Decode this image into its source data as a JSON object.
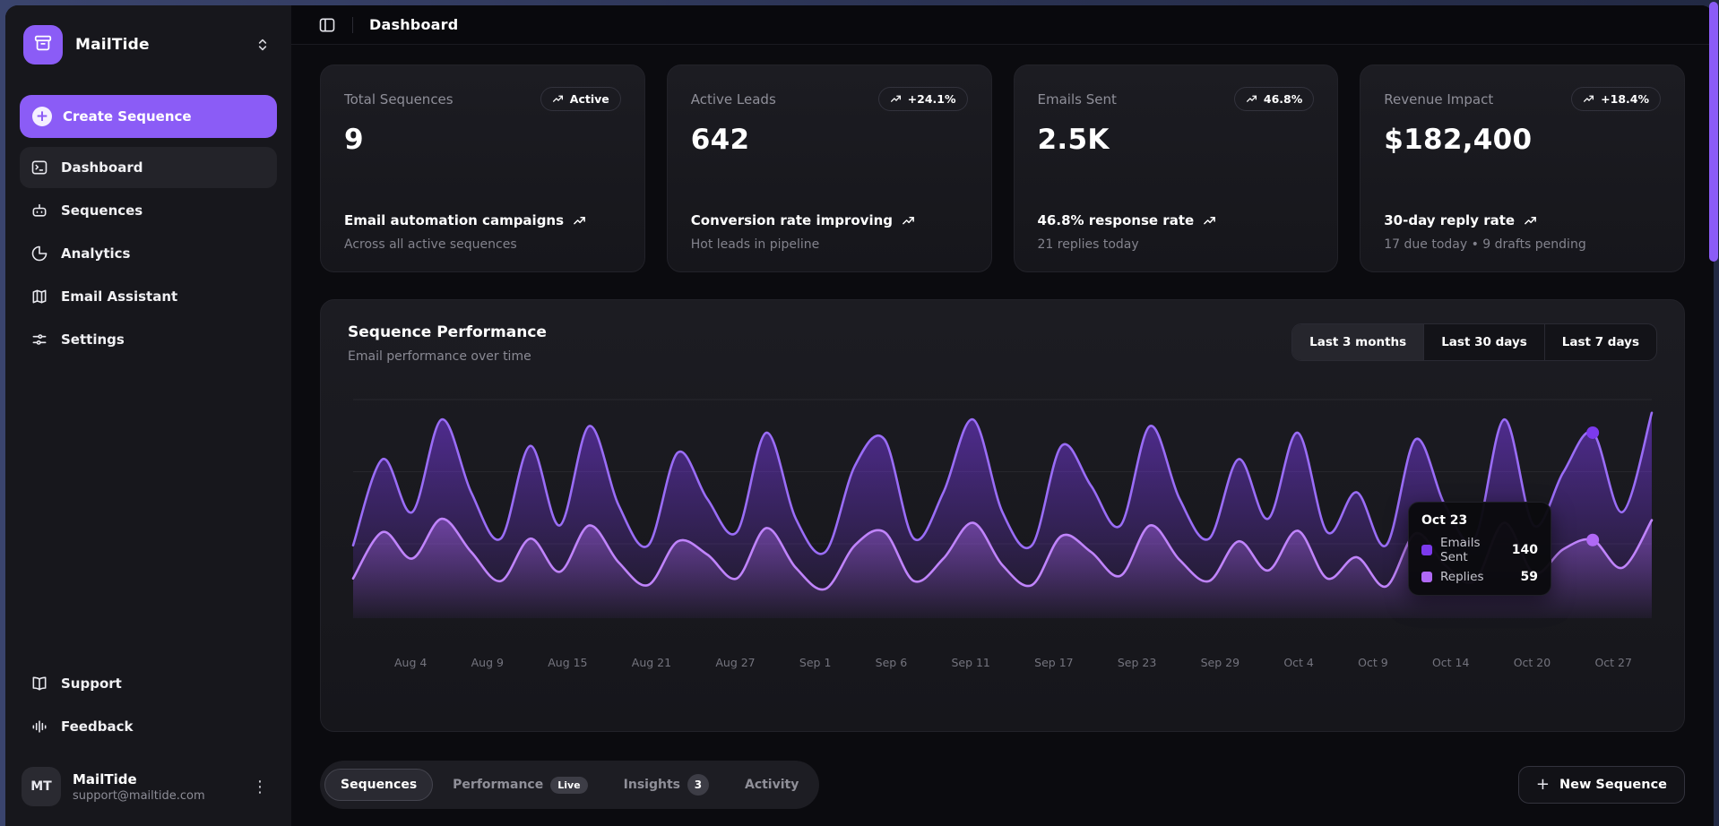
{
  "sidebar": {
    "brand": "MailTide",
    "create_button": "Create Sequence",
    "items": [
      {
        "label": "Dashboard",
        "active": true
      },
      {
        "label": "Sequences",
        "active": false
      },
      {
        "label": "Analytics",
        "active": false
      },
      {
        "label": "Email Assistant",
        "active": false
      },
      {
        "label": "Settings",
        "active": false
      }
    ],
    "footer_items": [
      {
        "label": "Support"
      },
      {
        "label": "Feedback"
      }
    ],
    "user": {
      "name": "MailTide",
      "email": "support@mailtide.com",
      "initials": "MT"
    }
  },
  "topbar": {
    "title": "Dashboard"
  },
  "stats": [
    {
      "label": "Total Sequences",
      "badge": "Active",
      "value": "9",
      "line1": "Email automation campaigns",
      "line2": "Across all active sequences"
    },
    {
      "label": "Active Leads",
      "badge": "+24.1%",
      "value": "642",
      "line1": "Conversion rate improving",
      "line2": "Hot leads in pipeline"
    },
    {
      "label": "Emails Sent",
      "badge": "46.8%",
      "value": "2.5K",
      "line1": "46.8% response rate",
      "line2": "21 replies today"
    },
    {
      "label": "Revenue Impact",
      "badge": "+18.4%",
      "value": "$182,400",
      "line1": "30-day reply rate",
      "line2": "17 due today • 9 drafts pending"
    }
  ],
  "chart": {
    "title": "Sequence Performance",
    "subtitle": "Email performance over time",
    "ranges": [
      "Last 3 months",
      "Last 30 days",
      "Last 7 days"
    ],
    "active_range": "Last 3 months",
    "hover_index": 42
  },
  "chart_data": {
    "type": "area",
    "title": "Sequence Performance",
    "x_labels": [
      "Aug 4",
      "Aug 9",
      "Aug 15",
      "Aug 21",
      "Aug 27",
      "Sep 1",
      "Sep 6",
      "Sep 11",
      "Sep 17",
      "Sep 23",
      "Sep 29",
      "Oct 4",
      "Oct 9",
      "Oct 14",
      "Oct 20",
      "Oct 27"
    ],
    "ylim": [
      0,
      165
    ],
    "grid": true,
    "legend_position": "tooltip-only",
    "series": [
      {
        "name": "Emails Sent",
        "color": "#7c3aed",
        "stroke": "#9a6df7",
        "values": [
          55,
          120,
          80,
          150,
          95,
          60,
          130,
          70,
          145,
          85,
          55,
          125,
          90,
          65,
          140,
          75,
          50,
          115,
          135,
          60,
          95,
          150,
          80,
          55,
          130,
          100,
          70,
          145,
          90,
          60,
          120,
          75,
          140,
          65,
          95,
          55,
          135,
          85,
          60,
          150,
          70,
          110,
          140,
          80,
          155
        ]
      },
      {
        "name": "Replies",
        "color": "#b069f5",
        "stroke": "#c084fc",
        "values": [
          30,
          65,
          45,
          75,
          50,
          28,
          60,
          35,
          70,
          42,
          25,
          58,
          48,
          30,
          68,
          38,
          22,
          55,
          65,
          28,
          45,
          72,
          40,
          25,
          62,
          50,
          32,
          70,
          44,
          28,
          58,
          36,
          66,
          30,
          46,
          24,
          64,
          40,
          28,
          72,
          34,
          52,
          59,
          38,
          74
        ]
      }
    ]
  },
  "tooltip": {
    "date": "Oct 23",
    "rows": [
      {
        "label": "Emails Sent",
        "value": "140",
        "color": "#7c3aed"
      },
      {
        "label": "Replies",
        "value": "59",
        "color": "#b069f5"
      }
    ]
  },
  "tabs": [
    {
      "label": "Sequences",
      "active": true,
      "badge": ""
    },
    {
      "label": "Performance",
      "active": false,
      "badge": "Live"
    },
    {
      "label": "Insights",
      "active": false,
      "badge": "3"
    },
    {
      "label": "Activity",
      "active": false,
      "badge": ""
    }
  ],
  "actions": {
    "new_sequence": "New Sequence",
    "plus": "+"
  },
  "colors": {
    "accent": "#8b5cf6",
    "page_frame": "#2a3252",
    "card_bg": "#1a1a20"
  }
}
